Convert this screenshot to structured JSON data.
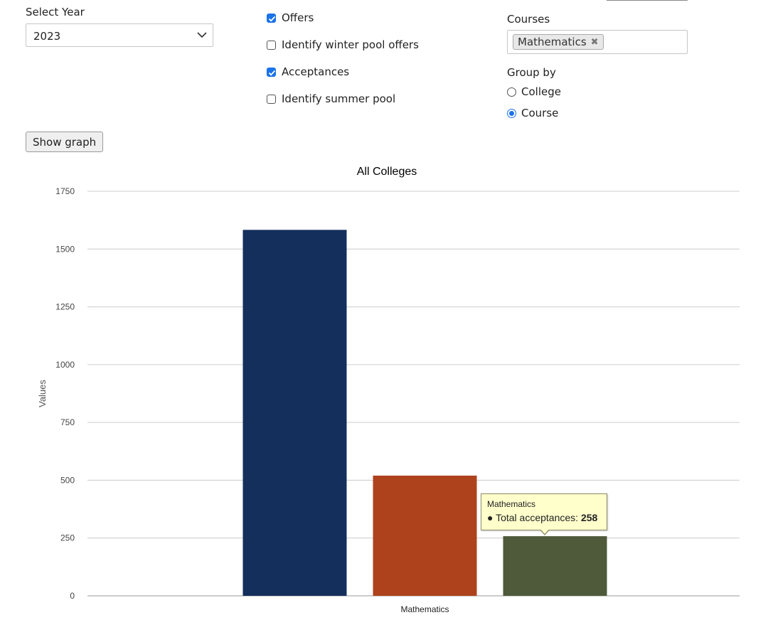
{
  "filters": {
    "year_label": "Select Year",
    "year_value": "2023",
    "checkboxes": [
      {
        "label": "Offers",
        "checked": true
      },
      {
        "label": "Identify winter pool offers",
        "checked": false
      },
      {
        "label": "Acceptances",
        "checked": true
      },
      {
        "label": "Identify summer pool",
        "checked": false
      }
    ],
    "courses_label": "Courses",
    "course_chip": "Mathematics",
    "chip_remove": "✖",
    "group_by_label": "Group by",
    "group_options": [
      {
        "label": "College",
        "selected": false
      },
      {
        "label": "Course",
        "selected": true
      }
    ]
  },
  "show_graph_label": "Show graph",
  "chart_data": {
    "type": "bar",
    "title": "All Colleges",
    "ylabel": "Values",
    "xlabel": "",
    "categories": [
      "Mathematics"
    ],
    "series": [
      {
        "values": [
          1583
        ],
        "color": "#142f5c"
      },
      {
        "values": [
          520
        ],
        "color": "#ad421d"
      },
      {
        "name": "Total acceptances",
        "values": [
          258
        ],
        "color": "#4e5a3a"
      }
    ],
    "ylim": [
      0,
      1750
    ],
    "yticks": [
      "0",
      "250",
      "500",
      "750",
      "1000",
      "1250",
      "1500",
      "1750"
    ],
    "grid": true
  },
  "tooltip": {
    "title": "Mathematics",
    "label": "● Total acceptances:",
    "value": "258"
  }
}
